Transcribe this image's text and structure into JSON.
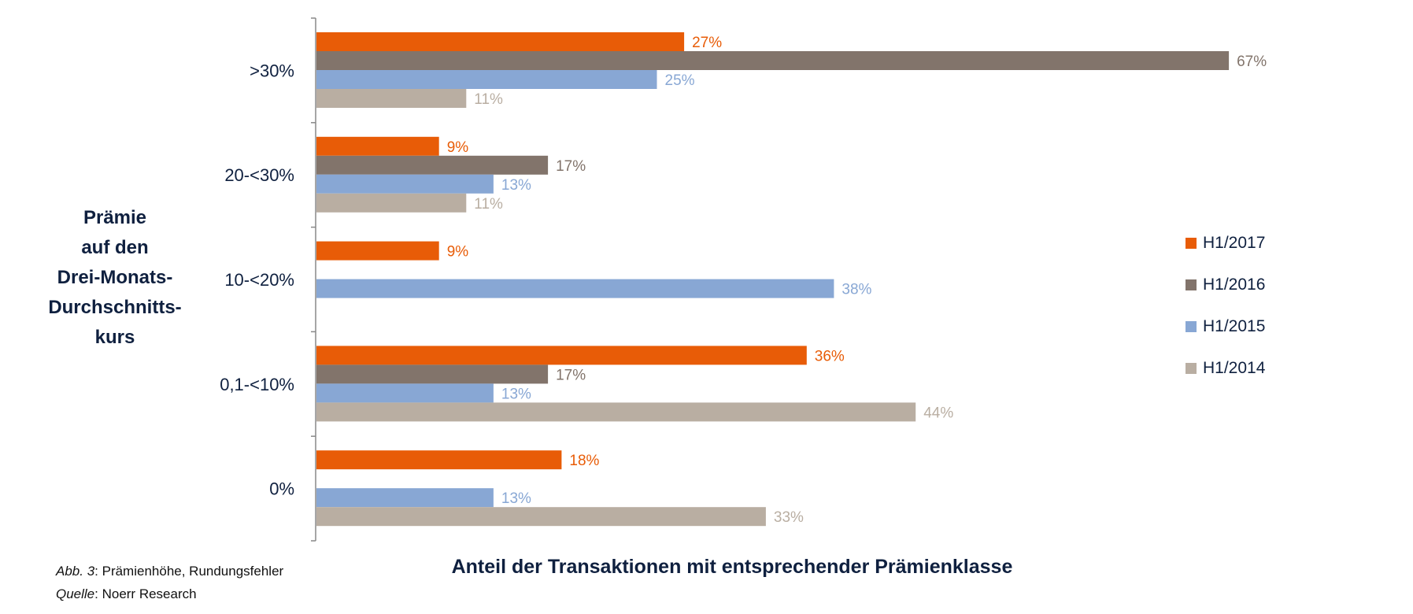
{
  "chart_data": {
    "type": "bar",
    "orientation": "horizontal",
    "categories": [
      ">30%",
      "20-<30%",
      "10-<20%",
      "0,1-<10%",
      "0%"
    ],
    "series": [
      {
        "name": "H1/2017",
        "color": "#e85c07",
        "values": [
          27,
          9,
          9,
          36,
          18
        ]
      },
      {
        "name": "H1/2016",
        "color": "#82746b",
        "values": [
          67,
          17,
          null,
          17,
          null
        ]
      },
      {
        "name": "H1/2015",
        "color": "#88a7d4",
        "values": [
          25,
          13,
          38,
          13,
          13
        ]
      },
      {
        "name": "H1/2014",
        "color": "#b9aea2",
        "values": [
          11,
          11,
          null,
          44,
          33
        ]
      }
    ],
    "value_suffix": "%",
    "xlim": [
      0,
      70
    ],
    "ylabel_lines": [
      "Prämie",
      "auf den",
      "Drei-Monats-",
      "Durchschnitts-",
      "kurs"
    ],
    "xlabel": "Anteil der Transaktionen mit entsprechender Prämienklasse",
    "legend_position": "right",
    "grid": false
  },
  "footnote": {
    "line1_italic": "Abb. 3",
    "line1_rest": ": Prämienhöhe, Rundungsfehler",
    "line2_italic": "Quelle",
    "line2_rest": ": Noerr Research"
  }
}
